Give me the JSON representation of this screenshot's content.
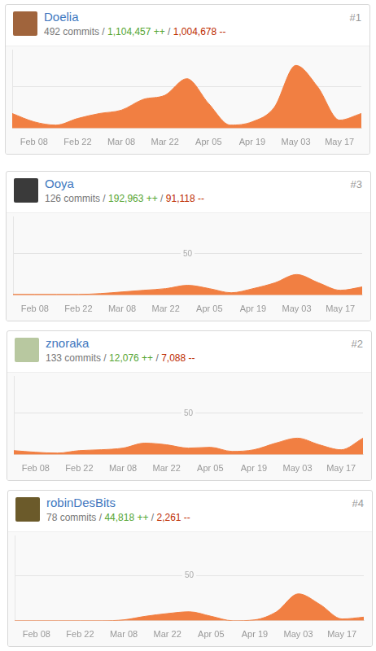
{
  "chart_data": [
    {
      "type": "line",
      "title": "Doelia",
      "subtitle": "492 commits / 1,104,457 ++ / 1,004,678 --",
      "annotations": [
        "#1"
      ],
      "categories": [
        null,
        "Feb 08",
        null,
        "Feb 22",
        null,
        "Mar 08",
        null,
        "Mar 22",
        null,
        "Apr 05",
        null,
        "Apr 19",
        null,
        "May 03",
        null,
        "May 17",
        null
      ],
      "values": [
        18,
        8,
        4,
        12,
        18,
        22,
        35,
        40,
        60,
        30,
        4,
        8,
        25,
        76,
        50,
        10,
        18
      ],
      "color": "#f17f42",
      "ylim": [
        0,
        95
      ],
      "yticks": [
        50
      ],
      "grid": true
    },
    {
      "type": "line",
      "title": "Ooya",
      "subtitle": "126 commits / 192,963 ++ / 91,118 --",
      "annotations": [
        "#3"
      ],
      "categories": [
        null,
        "Feb 08",
        null,
        "Feb 22",
        null,
        "Mar 08",
        null,
        "Mar 22",
        null,
        "Apr 05",
        null,
        "Apr 19",
        null,
        "May 03",
        null,
        "May 17",
        null
      ],
      "values": [
        1,
        1,
        1,
        1,
        2,
        4,
        6,
        8,
        12,
        8,
        3,
        8,
        15,
        25,
        15,
        6,
        10
      ],
      "color": "#f17f42",
      "ylim": [
        0,
        95
      ],
      "yticks": [
        50
      ],
      "grid": true
    },
    {
      "type": "line",
      "title": "znoraka",
      "subtitle": "133 commits / 12,076 ++ / 7,088 --",
      "annotations": [
        "#2"
      ],
      "categories": [
        null,
        "Feb 08",
        null,
        "Feb 22",
        null,
        "Mar 08",
        null,
        "Mar 22",
        null,
        "Apr 05",
        null,
        "Apr 19",
        null,
        "May 03",
        null,
        "May 17",
        null
      ],
      "values": [
        5,
        3,
        2,
        5,
        6,
        8,
        14,
        12,
        8,
        9,
        4,
        6,
        14,
        20,
        12,
        6,
        20
      ],
      "color": "#f17f42",
      "ylim": [
        0,
        95
      ],
      "yticks": [
        50
      ],
      "grid": true
    },
    {
      "type": "line",
      "title": "robinDesBits",
      "subtitle": "78 commits / 44,818 ++ / 2,261 --",
      "annotations": [
        "#4"
      ],
      "categories": [
        null,
        "Feb 08",
        null,
        "Feb 22",
        null,
        "Mar 08",
        null,
        "Mar 22",
        null,
        "Apr 05",
        null,
        "Apr 19",
        null,
        "May 03",
        null,
        "May 17",
        null
      ],
      "values": [
        0,
        0,
        0,
        0,
        0,
        1,
        5,
        8,
        10,
        5,
        0,
        1,
        10,
        30,
        18,
        2,
        4
      ],
      "color": "#f17f42",
      "ylim": [
        0,
        95
      ],
      "yticks": [
        50
      ],
      "grid": true
    }
  ]
}
